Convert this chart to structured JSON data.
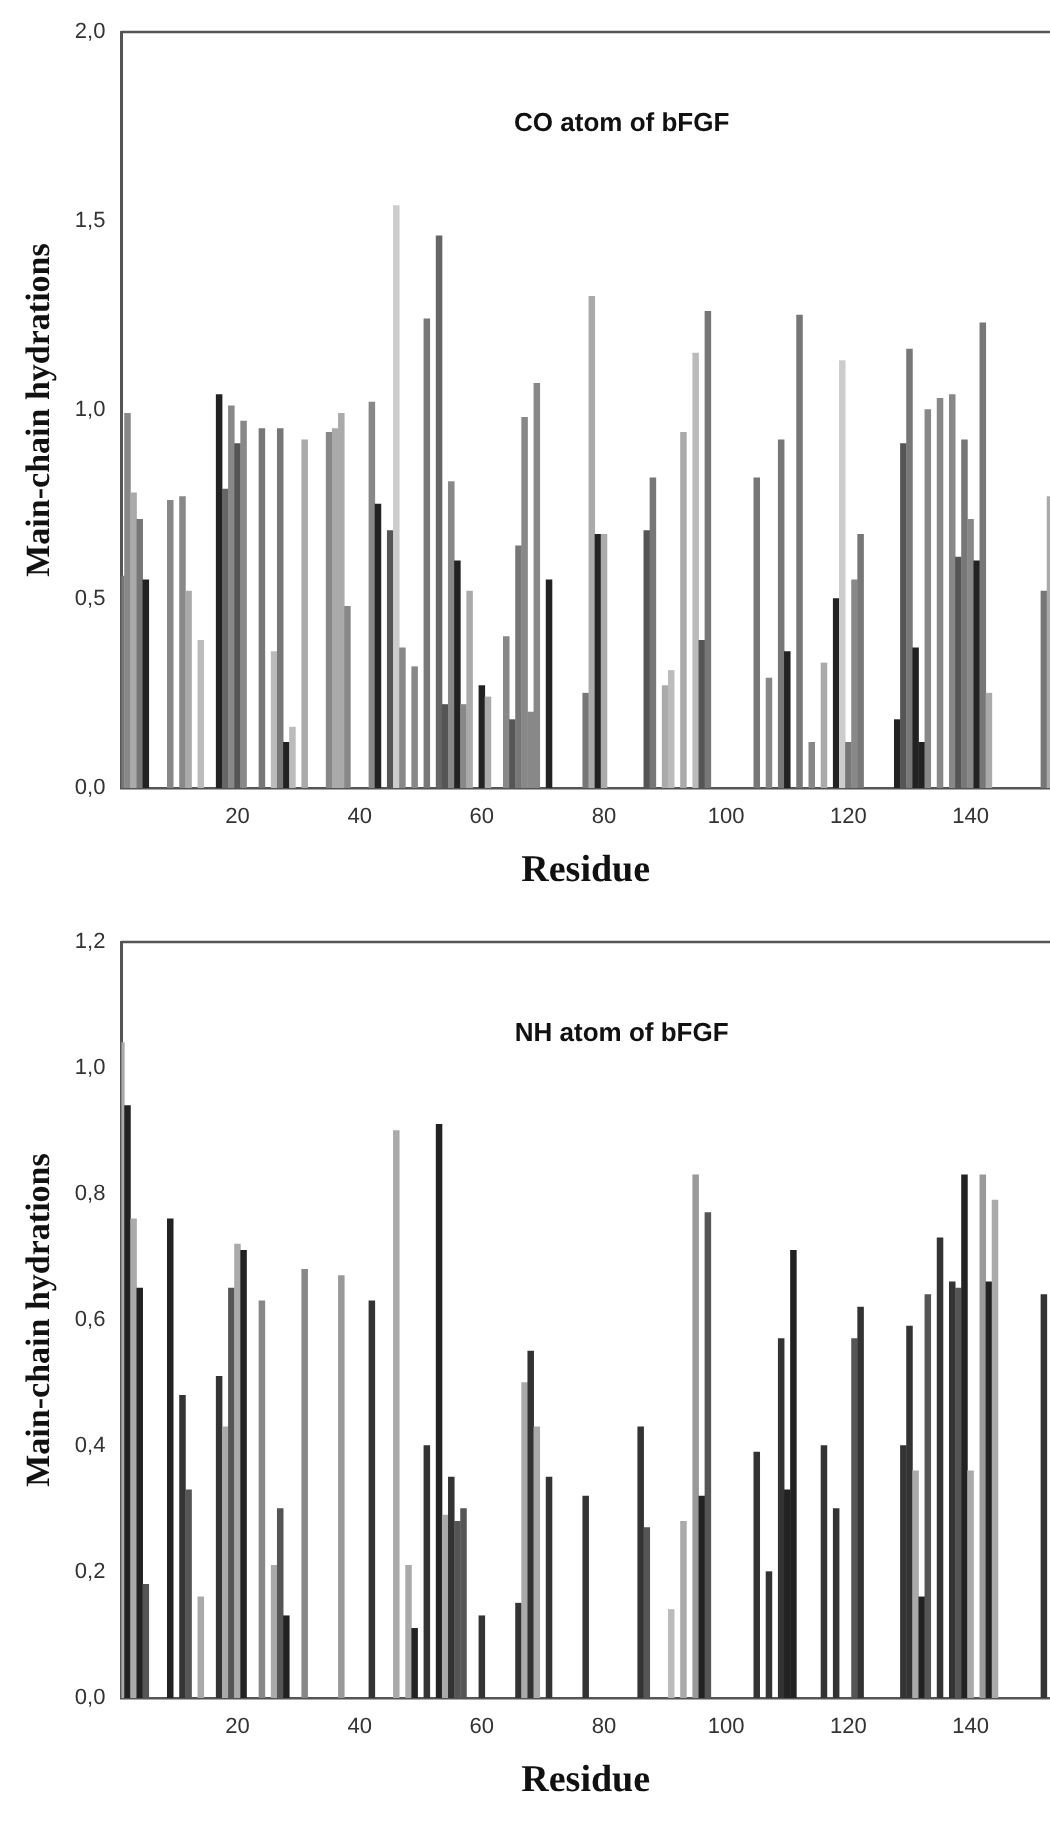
{
  "chart_data": [
    {
      "type": "bar",
      "title": "CO atom of bFGF",
      "xlabel": "Residue",
      "ylabel": "Main-chain hydrations",
      "x": [
        1,
        2,
        3,
        4,
        5,
        9,
        11,
        12,
        14,
        17,
        18,
        19,
        20,
        21,
        24,
        26,
        27,
        28,
        29,
        31,
        35,
        36,
        37,
        38,
        42,
        43,
        45,
        46,
        47,
        49,
        51,
        53,
        54,
        55,
        56,
        57,
        58,
        60,
        61,
        64,
        65,
        66,
        67,
        68,
        69,
        71,
        77,
        78,
        79,
        80,
        87,
        88,
        90,
        91,
        93,
        95,
        96,
        97,
        105,
        107,
        109,
        110,
        112,
        114,
        116,
        118,
        119,
        120,
        121,
        122,
        128,
        129,
        130,
        131,
        132,
        133,
        135,
        137,
        138,
        139,
        140,
        141,
        142,
        143,
        152,
        153
      ],
      "values": [
        0.56,
        0.99,
        0.78,
        0.71,
        0.55,
        0.76,
        0.77,
        0.52,
        0.39,
        1.04,
        0.79,
        1.01,
        0.91,
        0.97,
        0.95,
        0.36,
        0.95,
        0.12,
        0.16,
        0.92,
        0.94,
        0.95,
        0.99,
        0.48,
        1.02,
        0.75,
        0.68,
        1.54,
        0.37,
        0.32,
        1.24,
        1.46,
        0.22,
        0.81,
        0.6,
        0.22,
        0.52,
        0.27,
        0.24,
        0.4,
        0.18,
        0.64,
        0.98,
        0.2,
        1.07,
        0.55,
        0.25,
        1.3,
        0.67,
        0.67,
        0.68,
        0.82,
        0.27,
        0.31,
        0.94,
        1.15,
        0.39,
        1.26,
        0.82,
        0.29,
        0.92,
        0.36,
        1.25,
        0.12,
        0.33,
        0.5,
        1.13,
        0.12,
        0.55,
        0.67,
        0.18,
        0.91,
        1.16,
        0.37,
        0.12,
        1.0,
        1.03,
        1.04,
        0.61,
        0.92,
        0.71,
        0.6,
        1.23,
        0.25,
        0.52,
        0.77
      ],
      "colors": [
        "#777777",
        "#888888",
        "#aaaaaa",
        "#777777",
        "#222222",
        "#888888",
        "#888888",
        "#aaaaaa",
        "#bbbbbb",
        "#222222",
        "#666666",
        "#888888",
        "#555555",
        "#888888",
        "#777777",
        "#bbbbbb",
        "#777777",
        "#222222",
        "#bbbbbb",
        "#aaaaaa",
        "#888888",
        "#aaaaaa",
        "#aaaaaa",
        "#888888",
        "#888888",
        "#222222",
        "#555555",
        "#cccccc",
        "#888888",
        "#888888",
        "#777777",
        "#666666",
        "#555555",
        "#888888",
        "#222222",
        "#888888",
        "#aaaaaa",
        "#222222",
        "#aaaaaa",
        "#888888",
        "#555555",
        "#777777",
        "#888888",
        "#888888",
        "#888888",
        "#222222",
        "#777777",
        "#aaaaaa",
        "#222222",
        "#aaaaaa",
        "#555555",
        "#777777",
        "#aaaaaa",
        "#bbbbbb",
        "#aaaaaa",
        "#bbbbbb",
        "#555555",
        "#777777",
        "#777777",
        "#888888",
        "#777777",
        "#222222",
        "#777777",
        "#888888",
        "#aaaaaa",
        "#222222",
        "#cccccc",
        "#777777",
        "#888888",
        "#777777",
        "#222222",
        "#555555",
        "#777777",
        "#222222",
        "#222222",
        "#888888",
        "#888888",
        "#888888",
        "#555555",
        "#777777",
        "#888888",
        "#222222",
        "#777777",
        "#aaaaaa",
        "#777777",
        "#aaaaaa"
      ],
      "xlim": [
        1,
        153
      ],
      "xticks": [
        20,
        40,
        60,
        80,
        100,
        120,
        140
      ],
      "ylim": [
        0,
        2
      ],
      "yticks": [
        {
          "value": 0,
          "label": "0,0"
        },
        {
          "value": 0.5,
          "label": "0,5"
        },
        {
          "value": 1,
          "label": "1,0"
        },
        {
          "value": 1.5,
          "label": "1,5"
        },
        {
          "value": 2,
          "label": "2,0"
        }
      ],
      "grid": false
    },
    {
      "type": "bar",
      "title": "NH atom of bFGF",
      "xlabel": "Residue",
      "ylabel": "Main-chain hydrations",
      "x": [
        1,
        2,
        3,
        4,
        5,
        9,
        11,
        12,
        14,
        17,
        18,
        19,
        20,
        21,
        24,
        26,
        27,
        28,
        31,
        37,
        42,
        46,
        48,
        49,
        51,
        53,
        54,
        55,
        56,
        57,
        60,
        66,
        67,
        68,
        69,
        71,
        77,
        86,
        87,
        91,
        93,
        95,
        96,
        97,
        105,
        107,
        109,
        110,
        111,
        116,
        118,
        121,
        122,
        129,
        130,
        131,
        132,
        133,
        135,
        137,
        138,
        139,
        140,
        142,
        143,
        144,
        152
      ],
      "values": [
        1.04,
        0.94,
        0.76,
        0.65,
        0.18,
        0.76,
        0.48,
        0.33,
        0.16,
        0.51,
        0.43,
        0.65,
        0.72,
        0.71,
        0.63,
        0.21,
        0.3,
        0.13,
        0.68,
        0.67,
        0.63,
        0.9,
        0.21,
        0.11,
        0.4,
        0.91,
        0.29,
        0.35,
        0.28,
        0.3,
        0.13,
        0.15,
        0.5,
        0.55,
        0.43,
        0.35,
        0.32,
        0.43,
        0.27,
        0.14,
        0.28,
        0.83,
        0.32,
        0.77,
        0.39,
        0.2,
        0.57,
        0.33,
        0.71,
        0.4,
        0.3,
        0.57,
        0.62,
        0.4,
        0.59,
        0.36,
        0.16,
        0.64,
        0.73,
        0.66,
        0.65,
        0.83,
        0.36,
        0.83,
        0.66,
        0.79,
        0.64
      ],
      "colors": [
        "#aaaaaa",
        "#222222",
        "#aaaaaa",
        "#222222",
        "#555555",
        "#222222",
        "#333333",
        "#555555",
        "#aaaaaa",
        "#333333",
        "#aaaaaa",
        "#555555",
        "#aaaaaa",
        "#222222",
        "#888888",
        "#aaaaaa",
        "#555555",
        "#222222",
        "#888888",
        "#999999",
        "#333333",
        "#aaaaaa",
        "#aaaaaa",
        "#222222",
        "#333333",
        "#222222",
        "#aaaaaa",
        "#333333",
        "#555555",
        "#555555",
        "#333333",
        "#333333",
        "#aaaaaa",
        "#333333",
        "#aaaaaa",
        "#333333",
        "#333333",
        "#333333",
        "#555555",
        "#bbbbbb",
        "#aaaaaa",
        "#999999",
        "#222222",
        "#555555",
        "#333333",
        "#333333",
        "#333333",
        "#222222",
        "#222222",
        "#333333",
        "#333333",
        "#555555",
        "#333333",
        "#333333",
        "#333333",
        "#aaaaaa",
        "#222222",
        "#555555",
        "#333333",
        "#333333",
        "#555555",
        "#222222",
        "#aaaaaa",
        "#999999",
        "#222222",
        "#aaaaaa",
        "#333333"
      ],
      "xlim": [
        1,
        153
      ],
      "xticks": [
        20,
        40,
        60,
        80,
        100,
        120,
        140
      ],
      "ylim": [
        0,
        1.2
      ],
      "yticks": [
        {
          "value": 0,
          "label": "0,0"
        },
        {
          "value": 0.2,
          "label": "0,2"
        },
        {
          "value": 0.4,
          "label": "0,4"
        },
        {
          "value": 0.6,
          "label": "0,6"
        },
        {
          "value": 0.8,
          "label": "0,8"
        },
        {
          "value": 1,
          "label": "1,0"
        },
        {
          "value": 1.2,
          "label": "1,2"
        }
      ],
      "grid": false
    }
  ]
}
